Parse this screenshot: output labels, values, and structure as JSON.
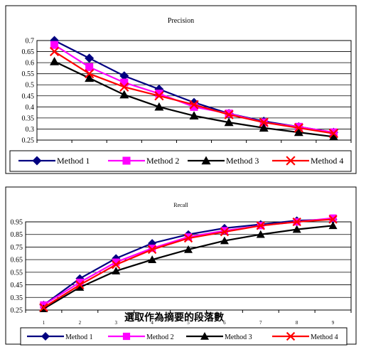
{
  "chart_data": [
    {
      "type": "line",
      "title": "Precision",
      "x": [
        1,
        2,
        3,
        4,
        5,
        6,
        7,
        8,
        9
      ],
      "show_x_tick_labels": false,
      "xlabel": "",
      "ylabel": "",
      "ylim": [
        0.25,
        0.7
      ],
      "yticks": [
        "0.7",
        "0.65",
        "0.6",
        "0.55",
        "0.5",
        "0.45",
        "0.4",
        "0.35",
        "0.3",
        "0.25"
      ],
      "grid": "horizontal",
      "legend_position": "bottom",
      "series": [
        {
          "name": "Method 1",
          "color": "#000080",
          "marker": "diamond",
          "values": [
            0.7,
            0.62,
            0.54,
            0.48,
            0.42,
            0.37,
            0.335,
            0.31,
            0.285
          ]
        },
        {
          "name": "Method 2",
          "color": "#FF00FF",
          "marker": "square",
          "values": [
            0.68,
            0.58,
            0.51,
            0.46,
            0.4,
            0.37,
            0.33,
            0.31,
            0.285
          ]
        },
        {
          "name": "Method 3",
          "color": "#000000",
          "marker": "triangle",
          "values": [
            0.605,
            0.53,
            0.455,
            0.4,
            0.36,
            0.33,
            0.305,
            0.285,
            0.265
          ]
        },
        {
          "name": "Method 4",
          "color": "#FF0000",
          "marker": "x",
          "values": [
            0.65,
            0.55,
            0.49,
            0.45,
            0.41,
            0.365,
            0.33,
            0.305,
            0.28
          ]
        }
      ]
    },
    {
      "type": "line",
      "title": "Recall",
      "x": [
        1,
        2,
        3,
        4,
        5,
        6,
        7,
        8,
        9
      ],
      "show_x_tick_labels": true,
      "xlabel": "選取作為摘要的段落數",
      "ylabel": "",
      "ylim": [
        0.25,
        0.95
      ],
      "yticks": [
        "0.95",
        "0.85",
        "0.75",
        "0.65",
        "0.55",
        "0.45",
        "0.35",
        "0.25"
      ],
      "grid": "horizontal",
      "legend_position": "bottom",
      "series": [
        {
          "name": "Method 1",
          "color": "#000080",
          "marker": "diamond",
          "values": [
            0.29,
            0.5,
            0.66,
            0.78,
            0.85,
            0.9,
            0.93,
            0.96,
            0.97
          ]
        },
        {
          "name": "Method 2",
          "color": "#FF00FF",
          "marker": "square",
          "values": [
            0.29,
            0.47,
            0.63,
            0.74,
            0.83,
            0.88,
            0.92,
            0.95,
            0.98
          ]
        },
        {
          "name": "Method 3",
          "color": "#000000",
          "marker": "triangle",
          "values": [
            0.26,
            0.43,
            0.56,
            0.65,
            0.73,
            0.8,
            0.85,
            0.89,
            0.92
          ]
        },
        {
          "name": "Method 4",
          "color": "#FF0000",
          "marker": "x",
          "values": [
            0.27,
            0.45,
            0.61,
            0.73,
            0.82,
            0.87,
            0.92,
            0.95,
            0.97
          ]
        }
      ]
    }
  ]
}
